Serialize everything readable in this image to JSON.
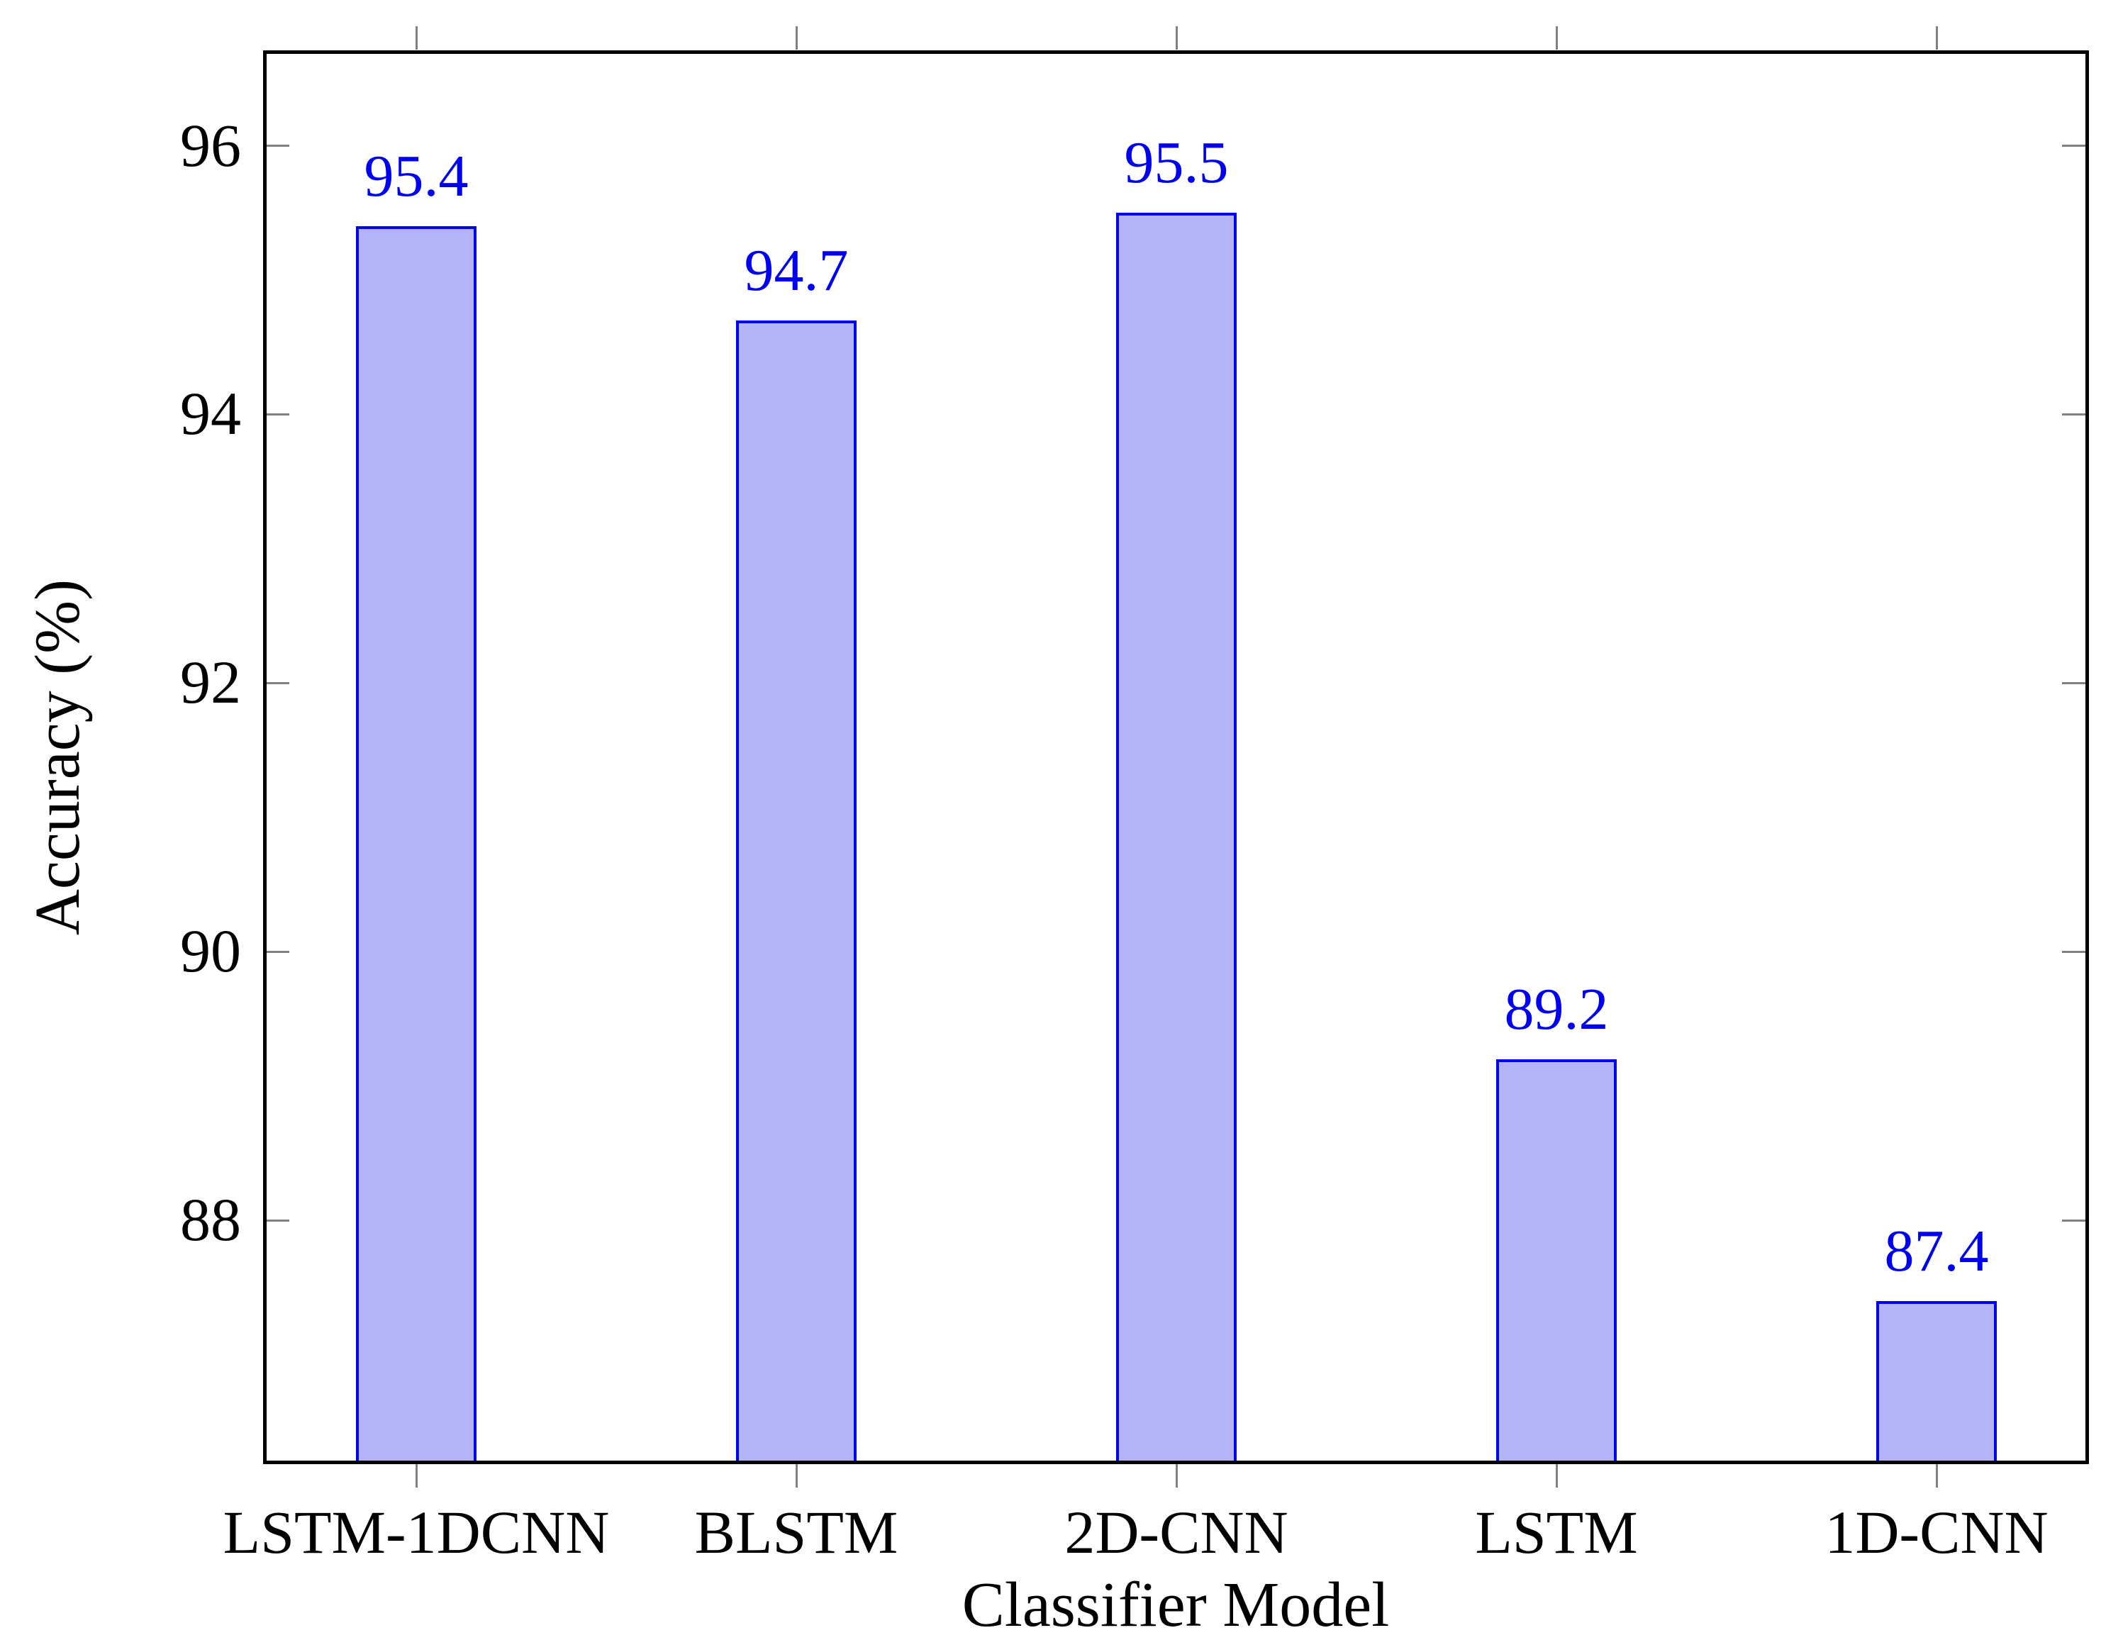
{
  "chart_data": {
    "type": "bar",
    "xlabel": "Classifier Model",
    "ylabel": "Accuracy (%)",
    "categories": [
      "LSTM-1DCNN",
      "BLSTM",
      "2D-CNN",
      "LSTM",
      "1D-CNN"
    ],
    "values": [
      95.4,
      94.7,
      95.5,
      89.2,
      87.4
    ],
    "value_labels": [
      "95.4",
      "94.7",
      "95.5",
      "89.2",
      "87.4"
    ],
    "yticks": [
      88,
      90,
      92,
      94,
      96
    ],
    "ytick_labels": [
      "88",
      "90",
      "92",
      "94",
      "96"
    ],
    "ylim": [
      86.2,
      96.7
    ],
    "grid": false,
    "legend": "none",
    "colors": {
      "bar_fill": "#B3B3FA",
      "bar_edge": "#0000F0",
      "value_label": "#0000F0",
      "tick": "#808080",
      "frame": "#000000",
      "text": "#000000",
      "background": "#FFFFFF"
    }
  }
}
